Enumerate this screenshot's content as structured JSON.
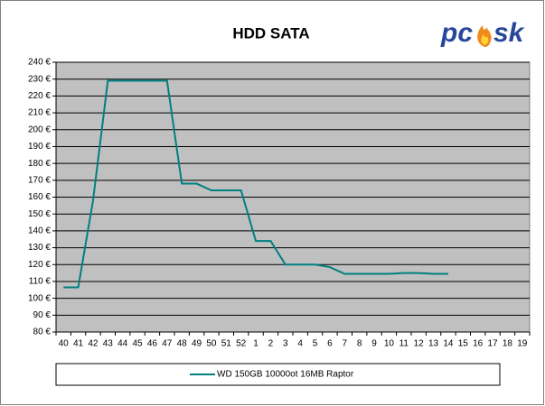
{
  "chart_data": {
    "type": "line",
    "title": "HDD SATA",
    "logo": [
      "pc",
      "sk"
    ],
    "categories": [
      "40",
      "41",
      "42",
      "43",
      "44",
      "45",
      "46",
      "47",
      "48",
      "49",
      "50",
      "51",
      "52",
      "1",
      "2",
      "3",
      "4",
      "5",
      "6",
      "7",
      "8",
      "9",
      "10",
      "11",
      "12",
      "13",
      "14",
      "15",
      "16",
      "17",
      "18",
      "19"
    ],
    "series": [
      {
        "name": "WD 150GB 10000ot 16MB Raptor",
        "color": "#008080",
        "values": [
          106.5,
          106.5,
          158,
          229,
          229,
          229,
          229,
          229,
          168,
          168,
          164,
          164,
          164,
          134,
          134,
          120,
          120,
          120,
          118.5,
          114.5,
          114.5,
          114.5,
          114.5,
          115,
          115,
          114.5,
          114.5,
          null,
          null,
          null,
          null,
          null
        ]
      }
    ],
    "ylim": [
      80,
      240
    ],
    "yticks": [
      {
        "value": 80,
        "label": "80 €"
      },
      {
        "value": 90,
        "label": "90 €"
      },
      {
        "value": 100,
        "label": "100 €"
      },
      {
        "value": 110,
        "label": "110 €"
      },
      {
        "value": 120,
        "label": "120 €"
      },
      {
        "value": 130,
        "label": "130 €"
      },
      {
        "value": 140,
        "label": "140 €"
      },
      {
        "value": 150,
        "label": "150 €"
      },
      {
        "value": 160,
        "label": "160 €"
      },
      {
        "value": 170,
        "label": "170 €"
      },
      {
        "value": 180,
        "label": "180 €"
      },
      {
        "value": 190,
        "label": "190 €"
      },
      {
        "value": 200,
        "label": "200 €"
      },
      {
        "value": 210,
        "label": "210 €"
      },
      {
        "value": 220,
        "label": "220 €"
      },
      {
        "value": 230,
        "label": "230 €"
      },
      {
        "value": 240,
        "label": "240 €"
      }
    ],
    "grid": true,
    "plot_background": "#c0c0c0"
  }
}
